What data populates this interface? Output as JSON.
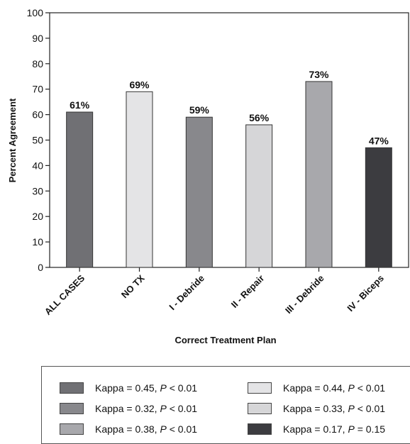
{
  "chart_data": {
    "type": "bar",
    "xlabel": "Correct Treatment Plan",
    "ylabel": "Percent Agreement",
    "ylim": [
      0,
      100
    ],
    "yticks": [
      0,
      10,
      20,
      30,
      40,
      50,
      60,
      70,
      80,
      90,
      100
    ],
    "grid": false,
    "categories": [
      "ALL CASES",
      "NO TX",
      "I - Debride",
      "II - Repair",
      "III - Debride",
      "IV - Biceps"
    ],
    "values": [
      61,
      69,
      59,
      56,
      73,
      47
    ],
    "data_labels": [
      "61%",
      "69%",
      "59%",
      "56%",
      "73%",
      "47%"
    ],
    "bar_colors": [
      "#707074",
      "#e4e4e6",
      "#88888c",
      "#d6d6d8",
      "#a8a8ac",
      "#3c3c40"
    ],
    "legend": [
      {
        "kappa": "Kappa = 0.45, ",
        "p": "P",
        "rest": " < 0.01",
        "color": "#707074"
      },
      {
        "kappa": "Kappa = 0.44, ",
        "p": "P",
        "rest": " < 0.01",
        "color": "#e4e4e6"
      },
      {
        "kappa": "Kappa = 0.32, ",
        "p": "P",
        "rest": " < 0.01",
        "color": "#88888c"
      },
      {
        "kappa": "Kappa = 0.33, ",
        "p": "P",
        "rest": " < 0.01",
        "color": "#d6d6d8"
      },
      {
        "kappa": "Kappa = 0.38, ",
        "p": "P",
        "rest": " < 0.01",
        "color": "#a8a8ac"
      },
      {
        "kappa": "Kappa = 0.17, ",
        "p": "P",
        "rest": " = 0.15",
        "color": "#3c3c40"
      }
    ],
    "legend_position": "bottom"
  }
}
